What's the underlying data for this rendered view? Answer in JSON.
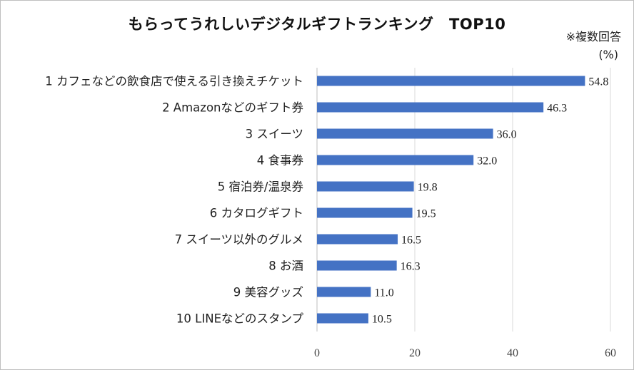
{
  "chart_data": {
    "type": "bar",
    "orientation": "horizontal",
    "title": "もらってうれしいデジタルギフトランキング　TOP10",
    "note": "※複数回答",
    "unit_label": "(%)",
    "categories": [
      "1 カフェなどの飲食店で使える引き換えチケット",
      "2 Amazonなどのギフト券",
      "3 スイーツ",
      "4 食事券",
      "5 宿泊券/温泉券",
      "6 カタログギフト",
      "7 スイーツ以外のグルメ",
      "8 お酒",
      "9 美容グッズ",
      "10 LINEなどのスタンプ"
    ],
    "values": [
      54.8,
      46.3,
      36.0,
      32.0,
      19.8,
      19.5,
      16.5,
      16.3,
      11.0,
      10.5
    ],
    "value_labels": [
      "54.8",
      "46.3",
      "36.0",
      "32.0",
      "19.8",
      "19.5",
      "16.5",
      "16.3",
      "11.0",
      "10.5"
    ],
    "xlim": [
      0,
      60
    ],
    "xticks": [
      0,
      20,
      40,
      60
    ],
    "xtick_labels": [
      "0",
      "20",
      "40",
      "60"
    ],
    "grid": true,
    "bar_color": "#4472c4",
    "grid_color": "#d9d9d9"
  }
}
